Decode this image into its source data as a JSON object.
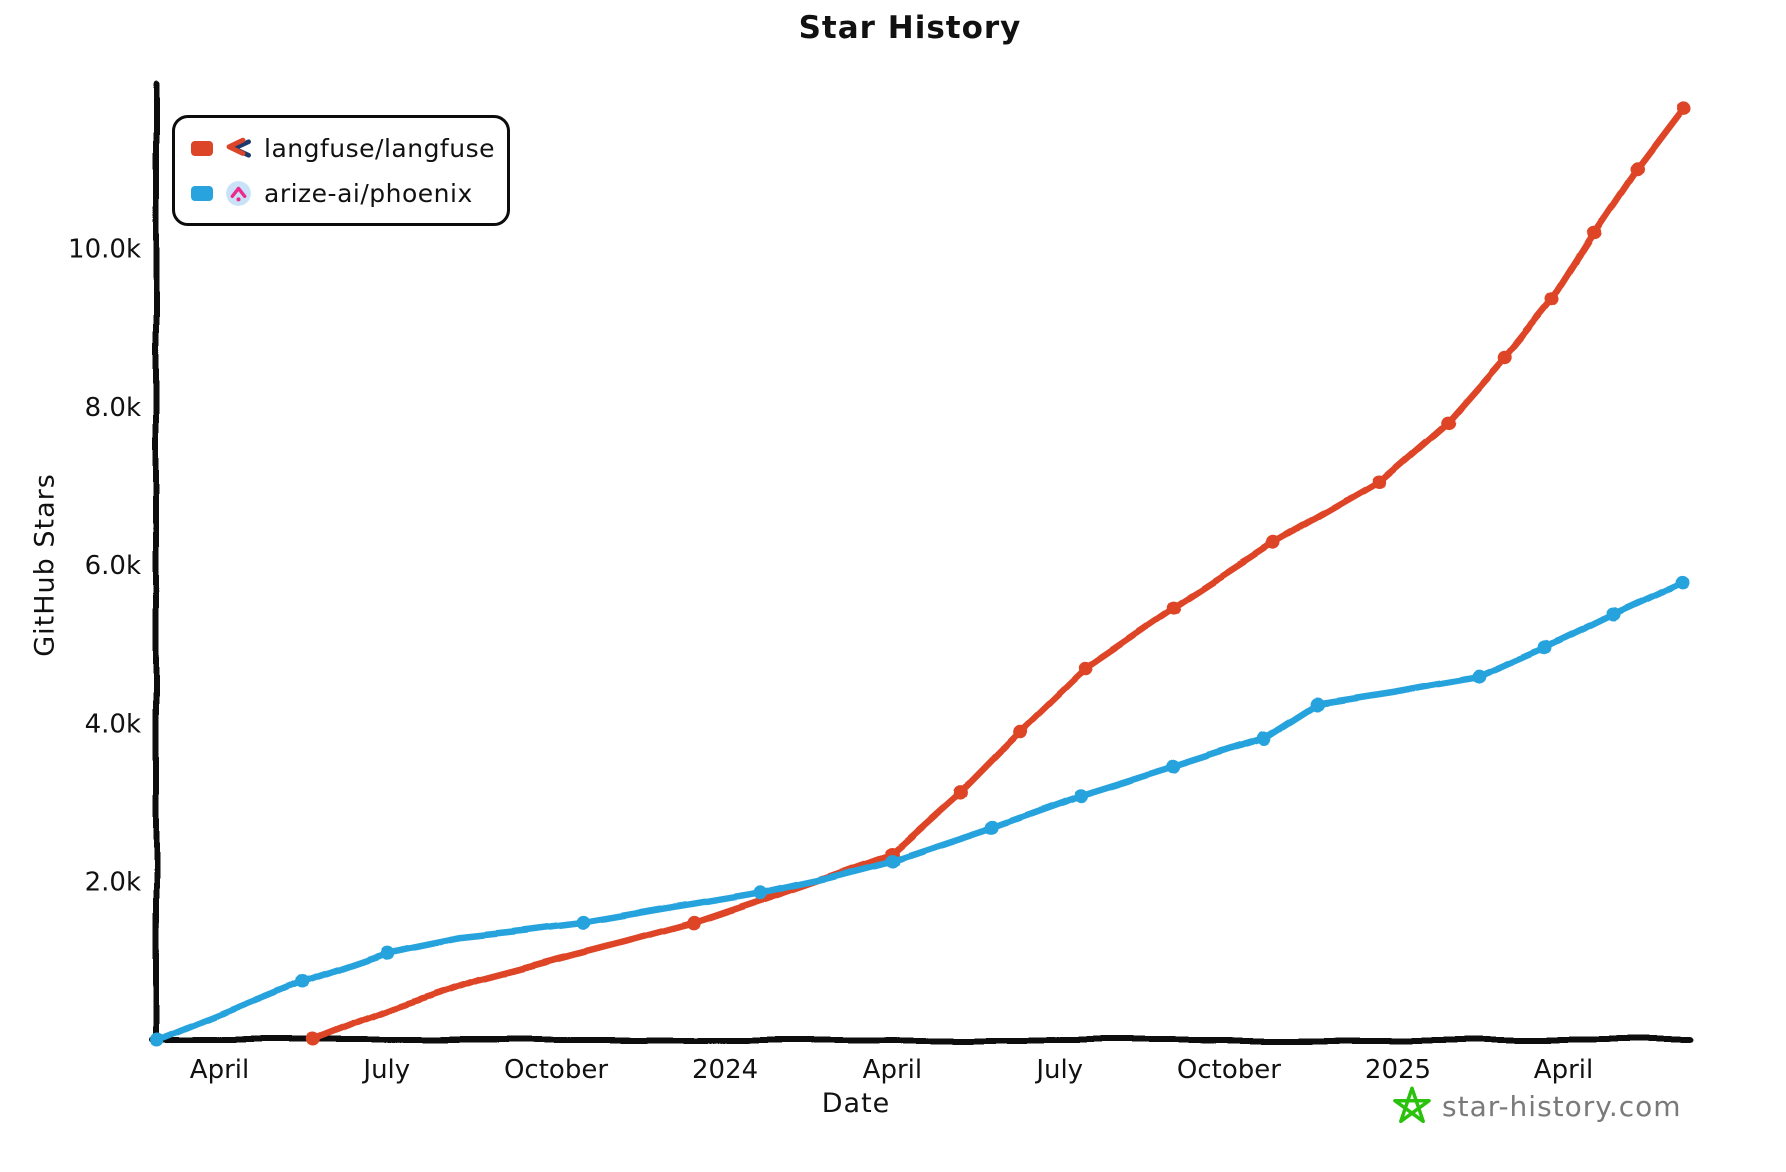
{
  "title": "Star History",
  "axes": {
    "x_label": "Date",
    "y_label": "GitHub Stars"
  },
  "legend": {
    "items": [
      {
        "label": "langfuse/langfuse",
        "color": "#dd4528",
        "logo_icon": "langfuse-logo"
      },
      {
        "label": "arize-ai/phoenix",
        "color": "#28a3dd",
        "logo_icon": "phoenix-logo"
      }
    ]
  },
  "watermark": {
    "text": "star-history.com",
    "icon": "green-doodle-star",
    "icon_color": "#2bc20e",
    "text_color": "#7a7a7a"
  },
  "chart_data": {
    "type": "line",
    "title": "Star History",
    "xlabel": "Date",
    "ylabel": "GitHub Stars",
    "grid": false,
    "legend_position": "top-left",
    "style": "xkcd-hand-drawn",
    "x_axis": {
      "type": "time",
      "range": [
        "2023-02-26",
        "2025-06-05"
      ],
      "ticks": [
        {
          "date": "2023-04-01",
          "label": "April"
        },
        {
          "date": "2023-07-01",
          "label": "July"
        },
        {
          "date": "2023-10-01",
          "label": "October"
        },
        {
          "date": "2024-01-01",
          "label": "2024"
        },
        {
          "date": "2024-04-01",
          "label": "April"
        },
        {
          "date": "2024-07-01",
          "label": "July"
        },
        {
          "date": "2024-10-01",
          "label": "October"
        },
        {
          "date": "2025-01-01",
          "label": "2025"
        },
        {
          "date": "2025-04-01",
          "label": "April"
        }
      ]
    },
    "y_axis": {
      "range": [
        0,
        12000
      ],
      "ticks": [
        {
          "value": 2000,
          "label": "2.0k"
        },
        {
          "value": 4000,
          "label": "4.0k"
        },
        {
          "value": 6000,
          "label": "6.0k"
        },
        {
          "value": 8000,
          "label": "8.0k"
        },
        {
          "value": 10000,
          "label": "10.0k"
        }
      ]
    },
    "series": [
      {
        "name": "langfuse/langfuse",
        "color": "#dd4528",
        "points": [
          [
            "2023-05-22",
            0,
            1
          ],
          [
            "2023-07-05",
            400,
            0
          ],
          [
            "2023-08-20",
            760,
            0
          ],
          [
            "2023-10-01",
            1020,
            0
          ],
          [
            "2023-11-08",
            1250,
            0
          ],
          [
            "2023-12-15",
            1480,
            1
          ],
          [
            "2024-01-25",
            1800,
            0
          ],
          [
            "2024-03-01",
            2090,
            0
          ],
          [
            "2024-04-01",
            2350,
            1
          ],
          [
            "2024-05-08",
            3120,
            1
          ],
          [
            "2024-06-10",
            3900,
            1
          ],
          [
            "2024-07-15",
            4690,
            1
          ],
          [
            "2024-09-01",
            5450,
            1
          ],
          [
            "2024-10-25",
            6270,
            1
          ],
          [
            "2024-12-22",
            7050,
            1
          ],
          [
            "2025-01-28",
            7800,
            1
          ],
          [
            "2025-02-28",
            8620,
            1
          ],
          [
            "2025-03-26",
            9360,
            1
          ],
          [
            "2025-04-18",
            10200,
            1
          ],
          [
            "2025-05-11",
            11000,
            1
          ],
          [
            "2025-06-05",
            11770,
            1
          ]
        ]
      },
      {
        "name": "arize-ai/phoenix",
        "color": "#28a3dd",
        "points": [
          [
            "2023-02-26",
            0,
            1
          ],
          [
            "2023-05-16",
            745,
            1
          ],
          [
            "2023-07-01",
            1110,
            1
          ],
          [
            "2023-08-10",
            1300,
            0
          ],
          [
            "2023-09-15",
            1390,
            0
          ],
          [
            "2023-10-16",
            1480,
            1
          ],
          [
            "2023-11-25",
            1640,
            0
          ],
          [
            "2024-01-20",
            1860,
            1
          ],
          [
            "2024-02-25",
            2040,
            0
          ],
          [
            "2024-04-01",
            2260,
            1
          ],
          [
            "2024-05-25",
            2680,
            1
          ],
          [
            "2024-07-12",
            3080,
            1
          ],
          [
            "2024-09-01",
            3450,
            1
          ],
          [
            "2024-10-20",
            3815,
            1
          ],
          [
            "2024-11-18",
            4245,
            1
          ],
          [
            "2024-12-28",
            4390,
            0
          ],
          [
            "2025-02-14",
            4585,
            1
          ],
          [
            "2025-03-22",
            4950,
            1
          ],
          [
            "2025-04-28",
            5370,
            1
          ],
          [
            "2025-06-05",
            5775,
            1
          ]
        ]
      }
    ]
  }
}
